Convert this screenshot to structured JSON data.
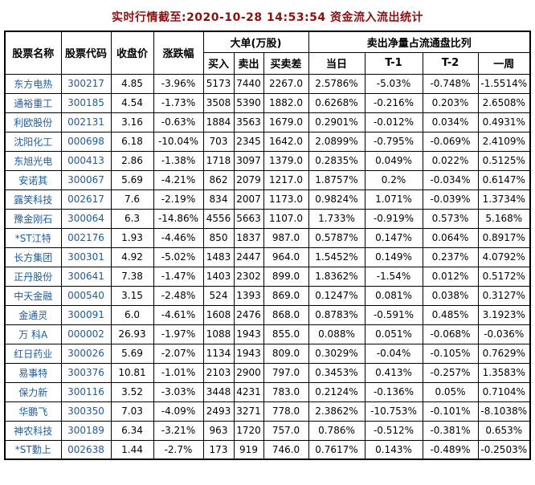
{
  "title": "实时行情截至:2020-10-28 14:53:54 资金流入流出统计",
  "colors": {
    "title": "#8b1111",
    "link": "#1b5b9d",
    "border": "#000000",
    "background": "#ffffff"
  },
  "table": {
    "headers": {
      "stock_name": "股票名称",
      "stock_code": "股票代码",
      "close_price": "收盘价",
      "change_pct": "涨跌幅",
      "large_orders_group": "大单(万股)",
      "buy": "买入",
      "sell": "卖出",
      "buy_sell_diff": "买卖差",
      "net_sell_ratio_group": "卖出净量占流通盘比列",
      "day": "当日",
      "t1": "T-1",
      "t2": "T-2",
      "week": "一周"
    },
    "rows": [
      [
        "东方电热",
        "300217",
        "4.85",
        "-3.96%",
        "5173",
        "7440",
        "2267.0",
        "2.5786%",
        "-5.03%",
        "-0.748%",
        "-1.5514%"
      ],
      [
        "通裕重工",
        "300185",
        "4.54",
        "-1.73%",
        "3508",
        "5390",
        "1882.0",
        "0.6268%",
        "-0.216%",
        "0.203%",
        "2.6508%"
      ],
      [
        "利欧股份",
        "002131",
        "3.16",
        "-0.63%",
        "1884",
        "3563",
        "1679.0",
        "0.2901%",
        "-0.012%",
        "0.034%",
        "0.4931%"
      ],
      [
        "沈阳化工",
        "000698",
        "6.18",
        "-10.04%",
        "703",
        "2345",
        "1642.0",
        "2.0899%",
        "-0.795%",
        "-0.069%",
        "2.4109%"
      ],
      [
        "东旭光电",
        "000413",
        "2.86",
        "-1.38%",
        "1718",
        "3097",
        "1379.0",
        "0.2835%",
        "0.049%",
        "0.022%",
        "0.5125%"
      ],
      [
        "安诺其",
        "300067",
        "5.69",
        "-4.21%",
        "862",
        "2079",
        "1217.0",
        "1.8757%",
        "0.2%",
        "-0.034%",
        "0.6147%"
      ],
      [
        "露笑科技",
        "002617",
        "7.6",
        "-2.19%",
        "834",
        "2007",
        "1173.0",
        "0.9824%",
        "1.071%",
        "-0.039%",
        "1.3734%"
      ],
      [
        "豫金刚石",
        "300064",
        "6.3",
        "-14.86%",
        "4556",
        "5663",
        "1107.0",
        "1.733%",
        "-0.919%",
        "0.573%",
        "5.168%"
      ],
      [
        "*ST江特",
        "002176",
        "1.93",
        "-4.46%",
        "850",
        "1837",
        "987.0",
        "0.5787%",
        "0.147%",
        "0.064%",
        "0.8917%"
      ],
      [
        "长方集团",
        "300301",
        "4.92",
        "-5.02%",
        "1483",
        "2447",
        "964.0",
        "1.5452%",
        "0.149%",
        "0.237%",
        "4.0792%"
      ],
      [
        "正丹股份",
        "300641",
        "7.38",
        "-1.47%",
        "1403",
        "2302",
        "899.0",
        "1.8362%",
        "-1.54%",
        "0.012%",
        "0.5172%"
      ],
      [
        "中天金融",
        "000540",
        "3.15",
        "-2.48%",
        "524",
        "1393",
        "869.0",
        "0.1247%",
        "0.081%",
        "0.038%",
        "0.3127%"
      ],
      [
        "金通灵",
        "300091",
        "6.0",
        "-4.61%",
        "1608",
        "2476",
        "868.0",
        "0.8783%",
        "-0.591%",
        "0.485%",
        "3.1923%"
      ],
      [
        "万 科A",
        "000002",
        "26.93",
        "-1.97%",
        "1088",
        "1943",
        "855.0",
        "0.088%",
        "0.051%",
        "-0.068%",
        "-0.036%"
      ],
      [
        "红日药业",
        "300026",
        "5.69",
        "-2.07%",
        "1134",
        "1943",
        "809.0",
        "0.3029%",
        "-0.04%",
        "-0.105%",
        "0.7629%"
      ],
      [
        "易事特",
        "300376",
        "10.81",
        "-1.01%",
        "2103",
        "2900",
        "797.0",
        "0.3453%",
        "0.413%",
        "-0.257%",
        "1.3583%"
      ],
      [
        "保力新",
        "300116",
        "3.52",
        "-3.03%",
        "3448",
        "4231",
        "783.0",
        "0.2124%",
        "-0.136%",
        "0.05%",
        "0.7104%"
      ],
      [
        "华鹏飞",
        "300350",
        "7.03",
        "-4.09%",
        "2493",
        "3271",
        "778.0",
        "2.3862%",
        "-10.753%",
        "-0.101%",
        "-8.1038%"
      ],
      [
        "神农科技",
        "300189",
        "6.34",
        "-3.21%",
        "963",
        "1720",
        "757.0",
        "0.786%",
        "-0.512%",
        "-0.381%",
        "0.653%"
      ],
      [
        "*ST勤上",
        "002638",
        "1.44",
        "-2.7%",
        "173",
        "919",
        "746.0",
        "0.7617%",
        "0.143%",
        "-0.489%",
        "-0.2503%"
      ]
    ],
    "cell_names": [
      "cell-stock-name",
      "cell-stock-code",
      "cell-close-price",
      "cell-change-pct",
      "cell-buy",
      "cell-sell",
      "cell-buy-sell-diff",
      "cell-ratio-day",
      "cell-ratio-t1",
      "cell-ratio-t2",
      "cell-ratio-week"
    ]
  }
}
